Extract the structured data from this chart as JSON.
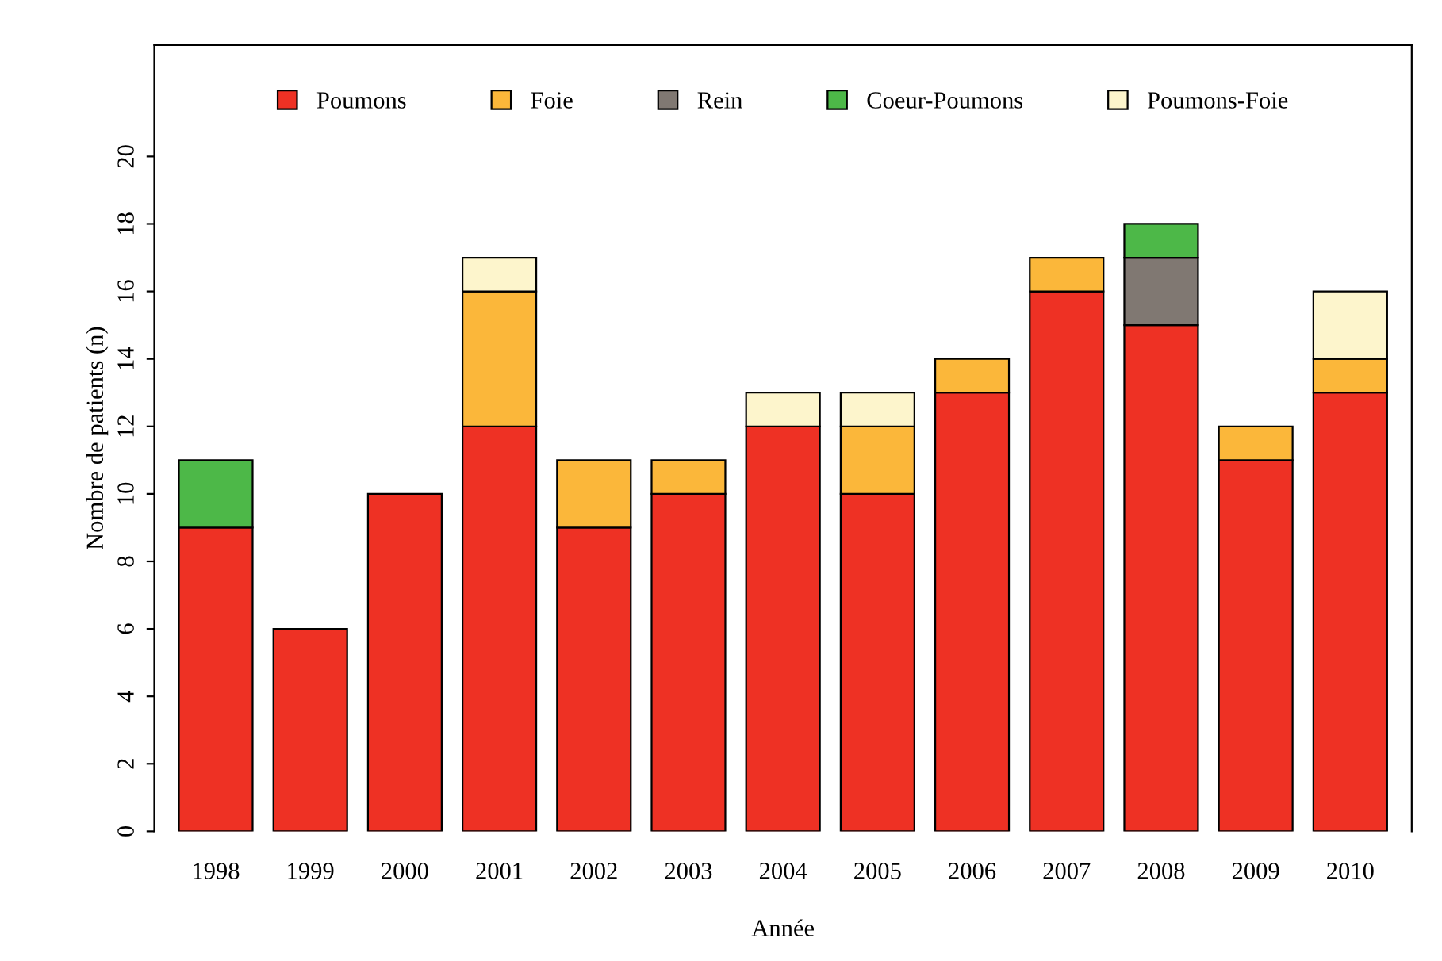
{
  "chart_data": {
    "type": "bar",
    "stacked": true,
    "xlabel": "Année",
    "ylabel": "Nombre de patients (n)",
    "categories": [
      "1998",
      "1999",
      "2000",
      "2001",
      "2002",
      "2003",
      "2004",
      "2005",
      "2006",
      "2007",
      "2008",
      "2009",
      "2010"
    ],
    "series": [
      {
        "name": "Poumons",
        "color": "#ee3124",
        "values": [
          9,
          6,
          10,
          12,
          9,
          10,
          12,
          10,
          13,
          16,
          15,
          11,
          13
        ]
      },
      {
        "name": "Foie",
        "color": "#fbb73a",
        "values": [
          null,
          null,
          null,
          4,
          2,
          1,
          null,
          2,
          1,
          1,
          null,
          1,
          1
        ]
      },
      {
        "name": "Rein",
        "color": "#807872",
        "values": [
          null,
          null,
          null,
          null,
          null,
          null,
          null,
          null,
          null,
          null,
          2,
          null,
          null
        ]
      },
      {
        "name": "Coeur-Poumons",
        "color": "#4db848",
        "values": [
          2,
          null,
          null,
          null,
          null,
          null,
          null,
          null,
          null,
          null,
          1,
          null,
          null
        ]
      },
      {
        "name": "Poumons-Foie",
        "color": "#fdf5cc",
        "values": [
          null,
          null,
          null,
          1,
          null,
          null,
          1,
          1,
          null,
          null,
          null,
          null,
          2
        ]
      }
    ],
    "ylim": [
      0,
      23.3
    ],
    "yticks": [
      0,
      2,
      4,
      6,
      8,
      10,
      12,
      14,
      16,
      18,
      20
    ],
    "grid": false,
    "legend": "top"
  }
}
